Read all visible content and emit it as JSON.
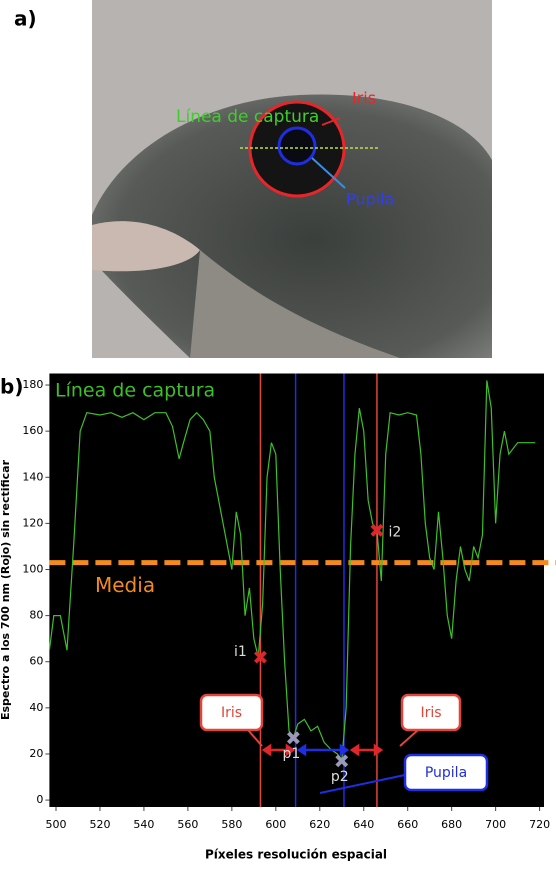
{
  "panel_a": {
    "label": "a)",
    "capture_line": "Línea de captura",
    "iris": "Iris",
    "pupil": "Pupila"
  },
  "chart_data": {
    "type": "line",
    "panel_label": "b)",
    "x_label": "Píxeles resolución espacial",
    "y_label": "Espectro a los 700 nm (Rojo) sin rectificar",
    "x": [
      497,
      499,
      502,
      505,
      508,
      511,
      514,
      520,
      525,
      530,
      535,
      540,
      545,
      550,
      553,
      556,
      558,
      561,
      564,
      567,
      570,
      572,
      575,
      578,
      580,
      582,
      584,
      586,
      588,
      590,
      592,
      594,
      596,
      598,
      600,
      602,
      604,
      606,
      608,
      610,
      613,
      616,
      619,
      622,
      625,
      628,
      630,
      632,
      634,
      636,
      638,
      640,
      642,
      644,
      646,
      648,
      650,
      652,
      656,
      660,
      664,
      666,
      668,
      670,
      672,
      674,
      676,
      678,
      680,
      682,
      684,
      686,
      688,
      690,
      692,
      694,
      696,
      698,
      700,
      702,
      704,
      706,
      710,
      714,
      718
    ],
    "series": [
      {
        "name": "Línea de captura",
        "color": "#3fbf2a",
        "values": [
          65,
          80,
          80,
          65,
          110,
          160,
          168,
          167,
          168,
          166,
          168,
          165,
          168,
          168,
          162,
          148,
          155,
          165,
          168,
          165,
          160,
          140,
          125,
          110,
          100,
          125,
          115,
          80,
          92,
          70,
          62,
          85,
          140,
          155,
          150,
          100,
          60,
          30,
          27,
          33,
          35,
          30,
          32,
          25,
          22,
          20,
          17,
          40,
          110,
          150,
          170,
          160,
          130,
          120,
          117,
          95,
          150,
          168,
          167,
          168,
          167,
          150,
          120,
          105,
          100,
          125,
          105,
          80,
          70,
          95,
          110,
          100,
          95,
          110,
          105,
          115,
          182,
          170,
          120,
          150,
          160,
          150,
          155,
          155,
          155
        ]
      }
    ],
    "xlim": [
      497,
      722
    ],
    "ylim": [
      -3,
      185
    ],
    "xticks": [
      500,
      520,
      540,
      560,
      580,
      600,
      620,
      640,
      660,
      680,
      700,
      720
    ],
    "yticks": [
      0,
      20,
      40,
      60,
      80,
      100,
      120,
      140,
      160,
      180
    ],
    "hlines": [
      {
        "label": "Media",
        "y": 103,
        "color": "#f28a1e"
      }
    ],
    "vlines": [
      {
        "x": 593,
        "color": "#e0443a"
      },
      {
        "x": 646,
        "color": "#e0443a"
      },
      {
        "x": 609,
        "color": "#1f2ee0"
      },
      {
        "x": 631,
        "color": "#1f2ee0"
      }
    ],
    "points": [
      {
        "label": "i1",
        "x": 593,
        "y": 62,
        "color": "#e0262a"
      },
      {
        "label": "i2",
        "x": 646,
        "y": 117,
        "color": "#e0262a"
      },
      {
        "label": "p1",
        "x": 608,
        "y": 27,
        "color": "#9a9ab8"
      },
      {
        "label": "p2",
        "x": 630,
        "y": 17,
        "color": "#9a9ab8"
      }
    ],
    "callouts": [
      {
        "text": "Iris",
        "color": "#e0443a"
      },
      {
        "text": "Iris",
        "color": "#e0443a"
      },
      {
        "text": "Pupila",
        "color": "#1f2ee0"
      }
    ]
  }
}
